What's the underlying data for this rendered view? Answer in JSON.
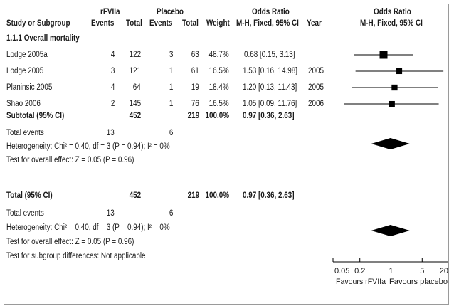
{
  "header": {
    "group1": "rFVIIa",
    "group2": "Placebo",
    "or_col": "Odds Ratio",
    "or_plot": "Odds Ratio",
    "study": "Study or Subgroup",
    "events1": "Events",
    "total1": "Total",
    "events2": "Events",
    "total2": "Total",
    "weight": "Weight",
    "method": "M-H, Fixed, 95% CI",
    "year": "Year",
    "method_plot": "M-H, Fixed, 95% CI"
  },
  "subgroup_title": "1.1.1 Overall mortality",
  "studies": [
    {
      "name": "Lodge 2005a",
      "events1": "4",
      "total1": "122",
      "events2": "3",
      "total2": "63",
      "weight": "48.7%",
      "ci_text": "0.68 [0.15, 3.13]",
      "year": "",
      "or": 0.68,
      "lo": 0.15,
      "hi": 3.13
    },
    {
      "name": "Lodge 2005",
      "events1": "3",
      "total1": "121",
      "events2": "1",
      "total2": "61",
      "weight": "16.5%",
      "ci_text": "1.53 [0.16, 14.98]",
      "year": "2005",
      "or": 1.53,
      "lo": 0.16,
      "hi": 14.98
    },
    {
      "name": "Planinsic 2005",
      "events1": "4",
      "total1": "64",
      "events2": "1",
      "total2": "19",
      "weight": "18.4%",
      "ci_text": "1.20 [0.13, 11.43]",
      "year": "2005",
      "or": 1.2,
      "lo": 0.13,
      "hi": 11.43
    },
    {
      "name": "Shao 2006",
      "events1": "2",
      "total1": "145",
      "events2": "1",
      "total2": "76",
      "weight": "16.5%",
      "ci_text": "1.05 [0.09, 11.76]",
      "year": "2006",
      "or": 1.05,
      "lo": 0.09,
      "hi": 11.76
    }
  ],
  "subtotal": {
    "label": "Subtotal (95% CI)",
    "total1": "452",
    "total2": "219",
    "weight": "100.0%",
    "ci_text": "0.97 [0.36, 2.63]",
    "or": 0.97,
    "lo": 0.36,
    "hi": 2.63
  },
  "subgroup_events": {
    "label": "Total events",
    "events1": "13",
    "events2": "6"
  },
  "subgroup_het": "Heterogeneity: Chi² = 0.40, df = 3 (P = 0.94); I² = 0%",
  "subgroup_effect": "Test for overall effect: Z = 0.05 (P = 0.96)",
  "total": {
    "label": "Total (95% CI)",
    "total1": "452",
    "total2": "219",
    "weight": "100.0%",
    "ci_text": "0.97 [0.36, 2.63]",
    "or": 0.97,
    "lo": 0.36,
    "hi": 2.63
  },
  "total_events": {
    "label": "Total events",
    "events1": "13",
    "events2": "6"
  },
  "total_het": "Heterogeneity: Chi² = 0.40, df = 3 (P = 0.94); I² = 0%",
  "total_effect": "Test for overall effect: Z = 0.05 (P = 0.96)",
  "subgroup_diff": "Test for subgroup differences: Not applicable",
  "chart_data": {
    "type": "forest",
    "scale": "log",
    "xlim": [
      0.05,
      20
    ],
    "ticks": [
      {
        "value": 0.05,
        "label": "0.05"
      },
      {
        "value": 0.2,
        "label": "0.2"
      },
      {
        "value": 1,
        "label": "1"
      },
      {
        "value": 5,
        "label": "5"
      },
      {
        "value": 20,
        "label": "20"
      }
    ],
    "favours_left": "Favours rFVIIa",
    "favours_right": "Favours placebo",
    "colors": {
      "marker": "#000000",
      "line": "#000000"
    }
  }
}
